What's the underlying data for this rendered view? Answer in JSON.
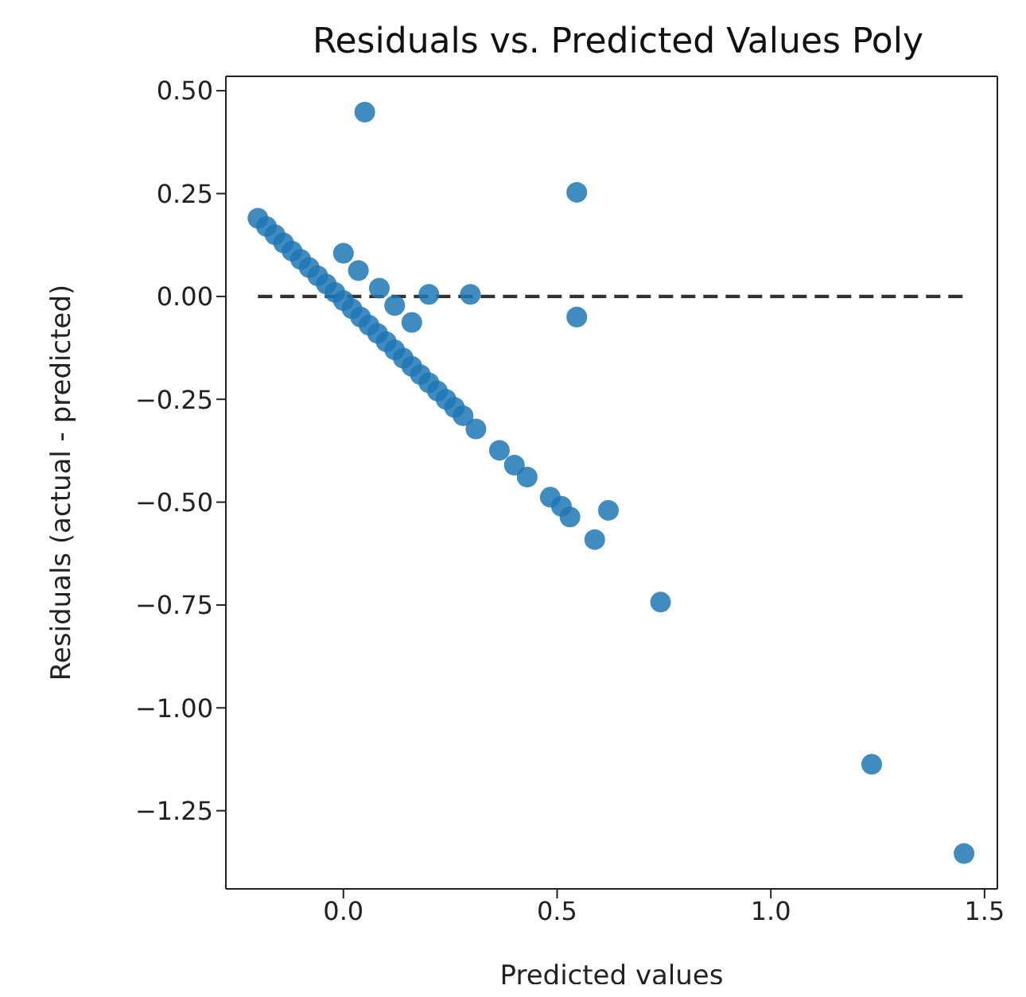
{
  "chart_data": {
    "type": "scatter",
    "title": "Residuals vs. Predicted Values Poly",
    "xlabel": "Predicted values",
    "ylabel": "Residuals (actual - predicted)",
    "xlim": [
      -0.275,
      1.53
    ],
    "xticks": [
      {
        "value": 0,
        "label": "0.0"
      },
      {
        "value": 0.5,
        "label": "0.5"
      },
      {
        "value": 1,
        "label": "1.0"
      },
      {
        "value": 1.5,
        "label": "1.5"
      }
    ],
    "ylim": [
      -1.44,
      0.535
    ],
    "yticks": [
      {
        "value": 0.5,
        "label": "0.50"
      },
      {
        "value": 0.25,
        "label": "0.25"
      },
      {
        "value": 0,
        "label": "0.00"
      },
      {
        "value": -0.25,
        "label": "−0.25"
      },
      {
        "value": -0.5,
        "label": "−0.50"
      },
      {
        "value": -0.75,
        "label": "−0.75"
      },
      {
        "value": -1,
        "label": "−1.00"
      },
      {
        "value": -1.25,
        "label": "−1.25"
      }
    ],
    "grid": false,
    "legend": false,
    "marker": "circle",
    "series": [
      {
        "color": "#1f77b4",
        "x": [
          -0.2,
          -0.18,
          -0.16,
          -0.14,
          -0.12,
          -0.1,
          -0.08,
          -0.06,
          -0.04,
          -0.02,
          0,
          0.02,
          0.04,
          0.06,
          0.08,
          0.1,
          0.12,
          0.14,
          0.16,
          0.18,
          0.2,
          0.22,
          0.24,
          0.26,
          0.28,
          0.31,
          0.365,
          0.4,
          0.43,
          0.484,
          0.51,
          0.53,
          0.62,
          0.588,
          0.742,
          1.236,
          1.452,
          0.05,
          0.546,
          0.546,
          0,
          0.035,
          0.084,
          0.12,
          0.16,
          0.2,
          0.297
        ],
        "values": [
          0.19,
          0.17,
          0.15,
          0.13,
          0.11,
          0.09,
          0.07,
          0.05,
          0.03,
          0.01,
          -0.01,
          -0.03,
          -0.05,
          -0.07,
          -0.09,
          -0.11,
          -0.13,
          -0.15,
          -0.17,
          -0.19,
          -0.21,
          -0.23,
          -0.25,
          -0.27,
          -0.29,
          -0.322,
          -0.374,
          -0.41,
          -0.439,
          -0.488,
          -0.51,
          -0.536,
          -0.52,
          -0.591,
          -0.743,
          -1.137,
          -1.354,
          0.448,
          0.253,
          -0.05,
          0.105,
          0.063,
          0.02,
          -0.022,
          -0.063,
          0.005,
          0.005
        ]
      },
      {
        "type": "line",
        "color": "#333333",
        "line_style": "dashed",
        "marker": "none",
        "x": [
          -0.2,
          1.45
        ],
        "values": [
          0,
          0
        ]
      }
    ]
  }
}
